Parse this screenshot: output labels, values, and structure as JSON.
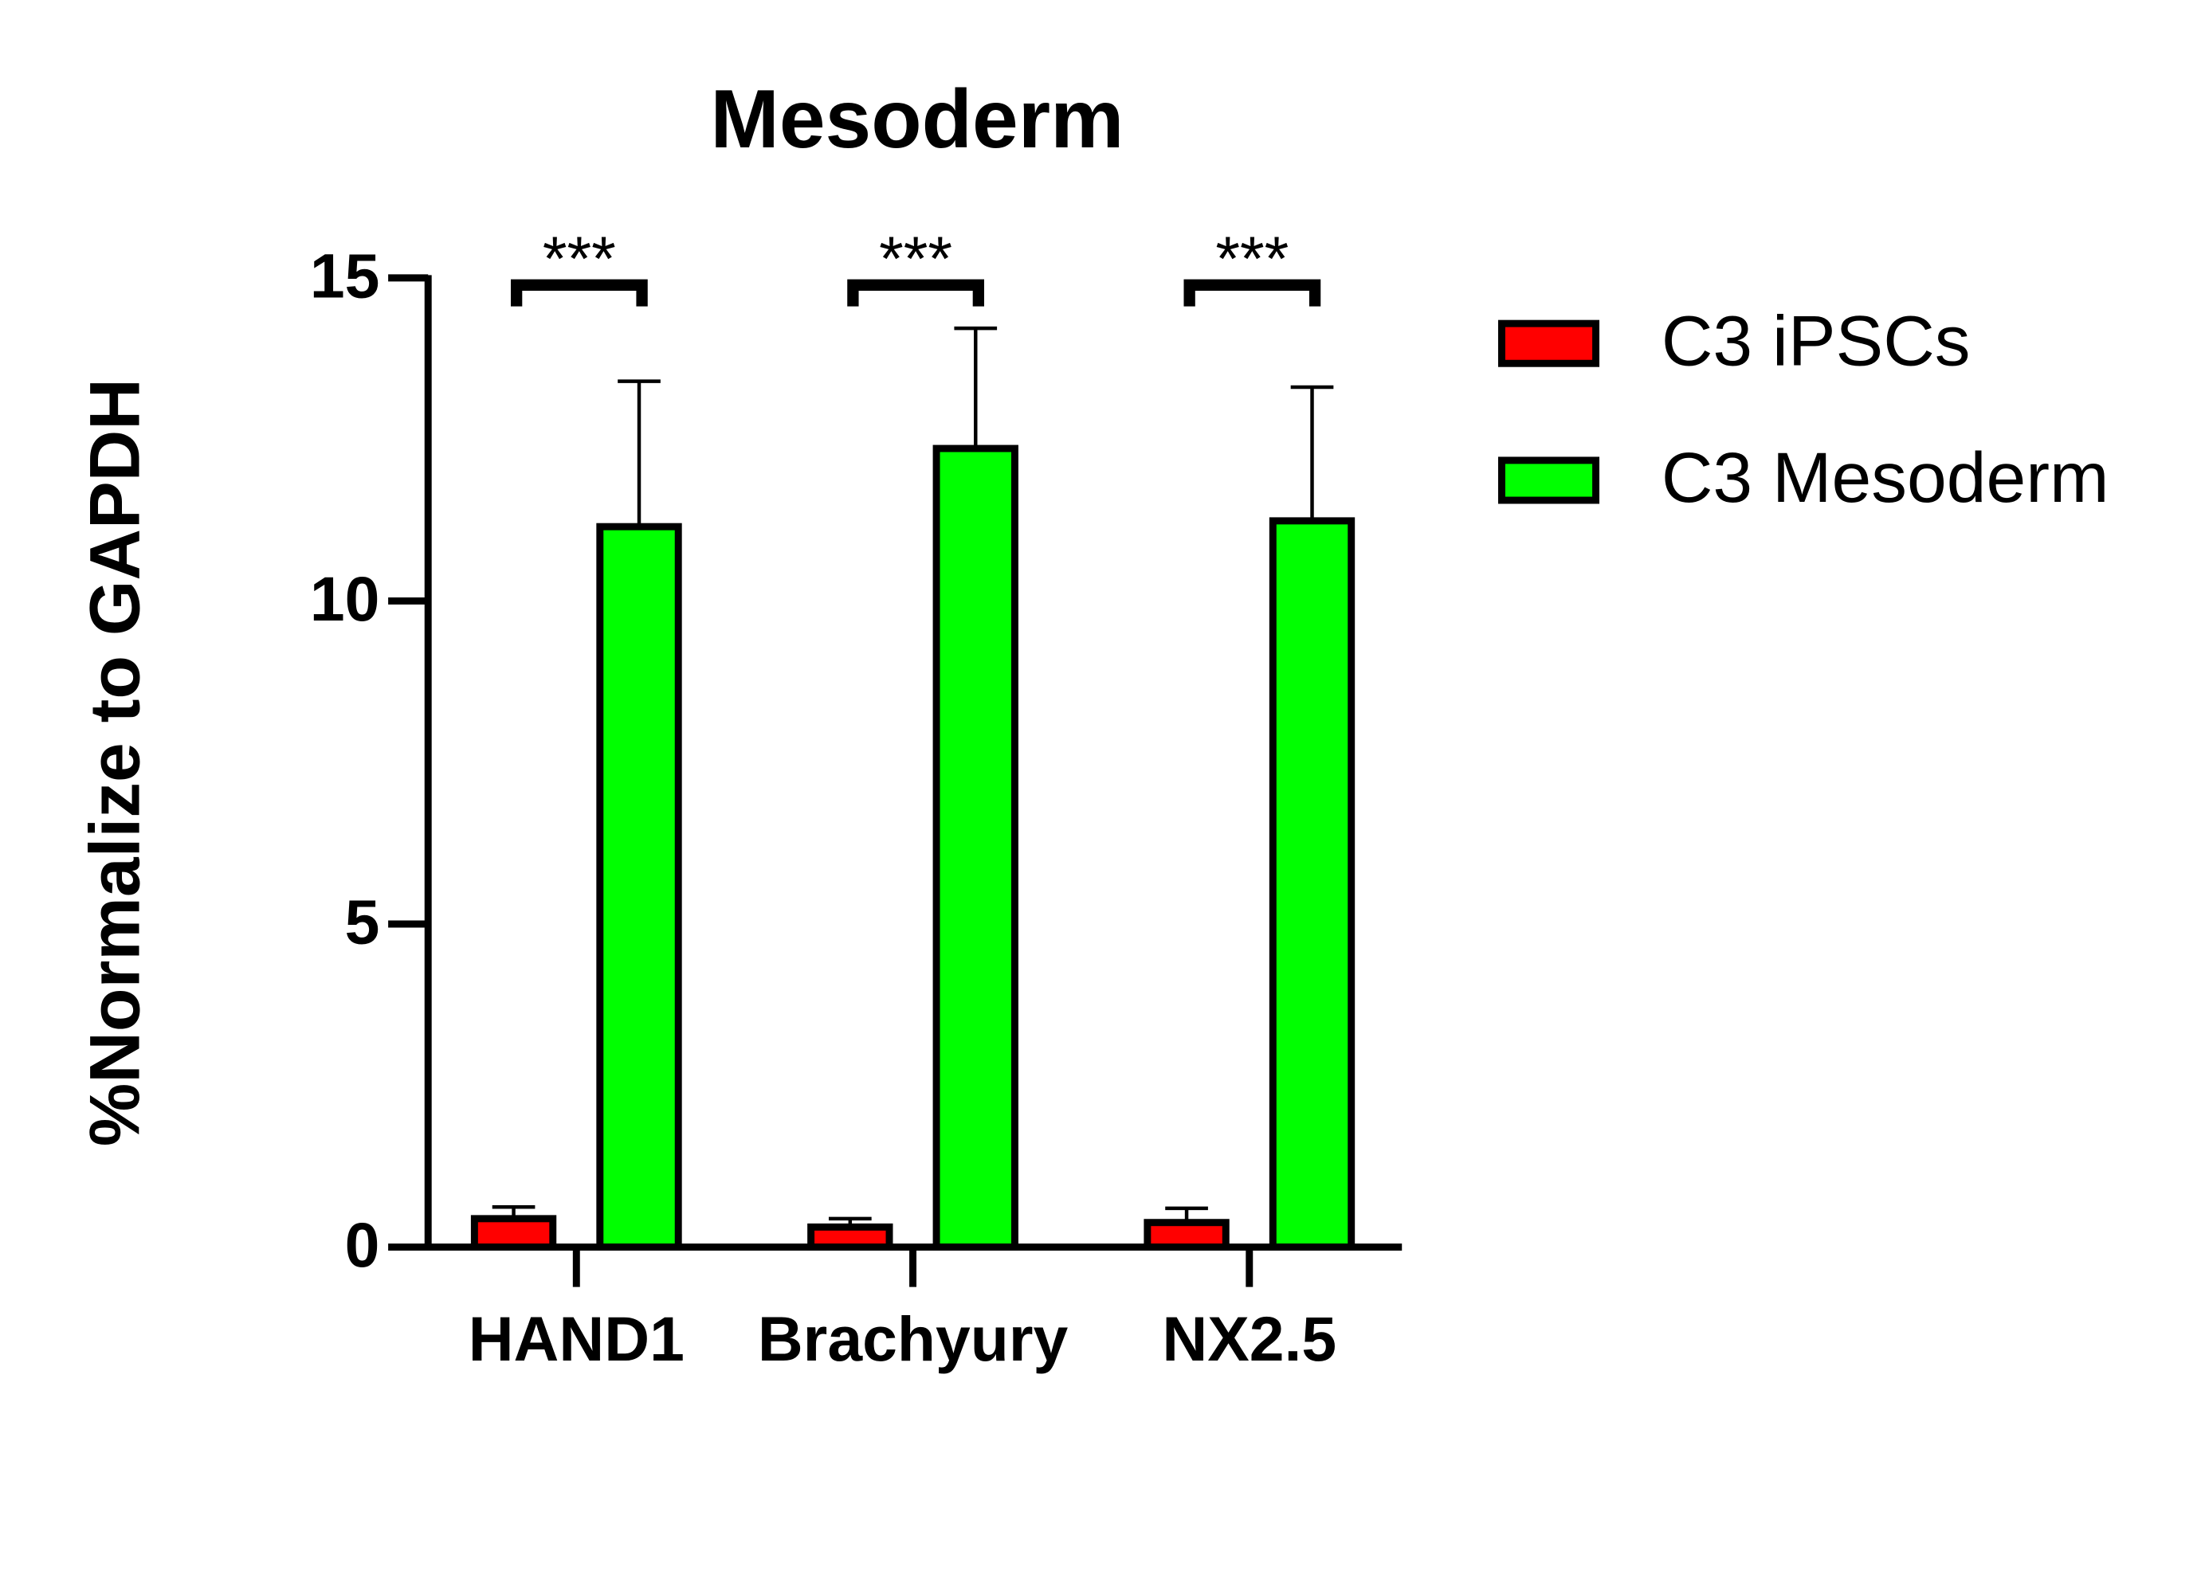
{
  "chart_data": {
    "type": "bar",
    "title": "Mesoderm",
    "y_label": "%Normalize to GAPDH",
    "categories": [
      "HAND1",
      "Brachyury",
      "NX2.5"
    ],
    "series": [
      {
        "name": "C3 iPSCs",
        "color": "#ff0000",
        "values": [
          0.44,
          0.31,
          0.38
        ],
        "errors": [
          0.18,
          0.13,
          0.22
        ]
      },
      {
        "name": "C3 Mesoderm",
        "color": "#00ff00",
        "values": [
          11.15,
          12.36,
          11.24
        ],
        "errors": [
          2.25,
          1.86,
          2.07
        ]
      }
    ],
    "significance": [
      "***",
      "***",
      "***"
    ],
    "ylim": [
      0,
      15
    ],
    "yticks": [
      0,
      5,
      10,
      15
    ],
    "grid": false,
    "legend": "right"
  }
}
